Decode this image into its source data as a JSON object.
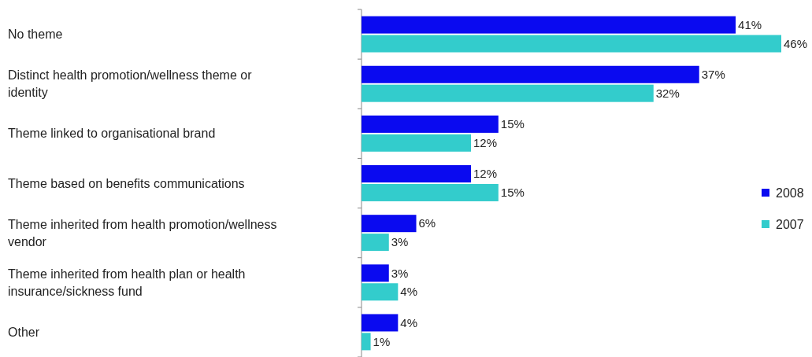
{
  "chart_data": {
    "type": "bar",
    "orientation": "horizontal",
    "categories": [
      "No theme",
      "Distinct health promotion/wellness theme or identity",
      "Theme linked to organisational brand",
      "Theme based on benefits communications",
      "Theme inherited from health promotion/wellness vendor",
      "Theme inherited from health plan or health insurance/sickness fund",
      "Other"
    ],
    "series": [
      {
        "name": "2008",
        "color": "#0a0af0",
        "values": [
          41,
          37,
          15,
          12,
          6,
          3,
          4
        ],
        "value_labels": [
          "41%",
          "37%",
          "15%",
          "12%",
          "6%",
          "3%",
          "4%"
        ]
      },
      {
        "name": "2007",
        "color": "#33cccc",
        "values": [
          46,
          32,
          12,
          15,
          3,
          4,
          1
        ],
        "value_labels": [
          "46%",
          "32%",
          "12%",
          "15%",
          "3%",
          "4%",
          "1%"
        ]
      }
    ],
    "legend": "right"
  }
}
